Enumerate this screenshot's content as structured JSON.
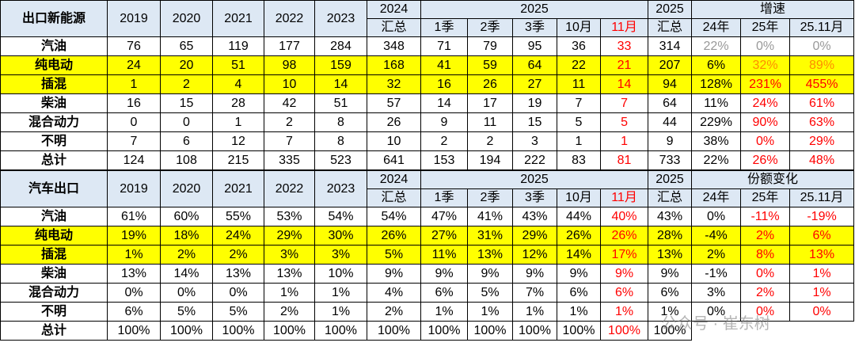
{
  "tables": [
    {
      "header": {
        "title": "出口新能源",
        "years": [
          "2019",
          "2020",
          "2021",
          "2022",
          "2023"
        ],
        "col2024": [
          "2024",
          "汇总"
        ],
        "group2025": "2025",
        "periods": [
          "1季",
          "2季",
          "3季",
          "10月",
          "11月"
        ],
        "col2025": [
          "2025",
          "汇总"
        ],
        "group_right": "增速",
        "right": [
          "24年",
          "25年",
          "25.11月"
        ]
      },
      "rows": [
        {
          "label": "汽油",
          "cells": [
            76,
            65,
            119,
            177,
            284,
            348,
            71,
            79,
            95,
            36,
            33,
            314,
            "22%",
            "0%",
            "0%"
          ]
        },
        {
          "label": "纯电动",
          "cells": [
            24,
            20,
            51,
            98,
            159,
            168,
            41,
            59,
            64,
            22,
            21,
            207,
            "6%",
            "32%",
            "89%"
          ]
        },
        {
          "label": "插混",
          "cells": [
            1,
            2,
            4,
            10,
            14,
            32,
            16,
            26,
            27,
            11,
            14,
            94,
            "128%",
            "231%",
            "455%"
          ]
        },
        {
          "label": "柴油",
          "cells": [
            16,
            15,
            28,
            42,
            51,
            57,
            14,
            17,
            19,
            7,
            7,
            64,
            "11%",
            "24%",
            "61%"
          ]
        },
        {
          "label": "混合动力",
          "cells": [
            0,
            0,
            1,
            2,
            8,
            26,
            9,
            11,
            15,
            5,
            5,
            44,
            "229%",
            "90%",
            "63%"
          ]
        },
        {
          "label": "不明",
          "cells": [
            7,
            6,
            12,
            7,
            8,
            10,
            2,
            2,
            3,
            1,
            1,
            9,
            "38%",
            "0%",
            "29%"
          ]
        },
        {
          "label": "总计",
          "cells": [
            124,
            108,
            215,
            335,
            523,
            641,
            153,
            194,
            222,
            83,
            81,
            733,
            "22%",
            "26%",
            "48%"
          ]
        }
      ]
    },
    {
      "header": {
        "title": "汽车出口",
        "years": [
          "2019",
          "2020",
          "2021",
          "2022",
          "2023"
        ],
        "col2024": [
          "2024",
          "汇总"
        ],
        "group2025": "2025",
        "periods": [
          "1季",
          "2季",
          "3季",
          "10月",
          "11月"
        ],
        "col2025": [
          "2025",
          "汇总"
        ],
        "group_right": "份额变化",
        "right": [
          "24年",
          "25年",
          "25.11月"
        ]
      },
      "rows": [
        {
          "label": "汽油",
          "cells": [
            "61%",
            "60%",
            "55%",
            "53%",
            "54%",
            "54%",
            "47%",
            "41%",
            "43%",
            "44%",
            "40%",
            "43%",
            "0%",
            "-11%",
            "-19%"
          ]
        },
        {
          "label": "纯电动",
          "cells": [
            "19%",
            "18%",
            "24%",
            "29%",
            "30%",
            "26%",
            "27%",
            "31%",
            "29%",
            "26%",
            "26%",
            "28%",
            "-4%",
            "2%",
            "6%"
          ]
        },
        {
          "label": "插混",
          "cells": [
            "1%",
            "2%",
            "2%",
            "3%",
            "3%",
            "5%",
            "11%",
            "13%",
            "12%",
            "14%",
            "17%",
            "13%",
            "2%",
            "8%",
            "13%"
          ]
        },
        {
          "label": "柴油",
          "cells": [
            "13%",
            "14%",
            "13%",
            "13%",
            "10%",
            "9%",
            "9%",
            "9%",
            "9%",
            "9%",
            "9%",
            "9%",
            "-1%",
            "0%",
            "1%"
          ]
        },
        {
          "label": "混合动力",
          "cells": [
            "0%",
            "0%",
            "0%",
            "1%",
            "1%",
            "4%",
            "6%",
            "5%",
            "7%",
            "6%",
            "6%",
            "6%",
            "3%",
            "2%",
            "1%"
          ]
        },
        {
          "label": "不明",
          "cells": [
            "6%",
            "5%",
            "5%",
            "2%",
            "1%",
            "2%",
            "1%",
            "1%",
            "1%",
            "1%",
            "1%",
            "1%",
            "0%",
            "0%",
            "0%"
          ]
        },
        {
          "label": "总计",
          "cells": [
            "100%",
            "100%",
            "100%",
            "100%",
            "100%",
            "100%",
            "100%",
            "100%",
            "100%",
            "100%",
            "100%",
            "100%"
          ]
        }
      ]
    }
  ],
  "watermark": "公众号 · 崔东树"
}
